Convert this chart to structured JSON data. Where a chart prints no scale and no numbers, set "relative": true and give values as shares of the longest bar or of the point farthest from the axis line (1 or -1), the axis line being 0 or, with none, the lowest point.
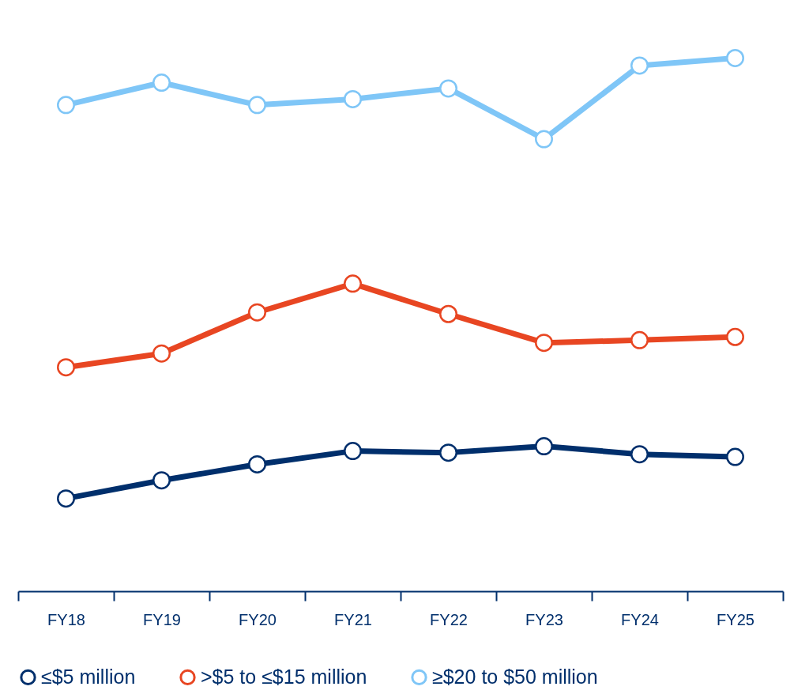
{
  "chart_data": {
    "type": "line",
    "relative": true,
    "categories": [
      "FY18",
      "FY19",
      "FY20",
      "FY21",
      "FY22",
      "FY23",
      "FY24",
      "FY25"
    ],
    "marker": "circle",
    "line_style": "solid",
    "grid": false,
    "legend": "bottom",
    "series": [
      {
        "name": "≤$5 million",
        "color": "#002f6c",
        "values": [
          0.174,
          0.208,
          0.238,
          0.263,
          0.26,
          0.272,
          0.257,
          0.252
        ]
      },
      {
        "name": ">$5 to ≤$15 million",
        "color": "#e84622",
        "values": [
          0.42,
          0.446,
          0.523,
          0.577,
          0.52,
          0.466,
          0.471,
          0.477
        ]
      },
      {
        "name": "≥$20 to $50 million",
        "color": "#7fc6f7",
        "values": [
          0.912,
          0.954,
          0.912,
          0.923,
          0.943,
          0.848,
          0.986,
          1
        ]
      }
    ]
  }
}
